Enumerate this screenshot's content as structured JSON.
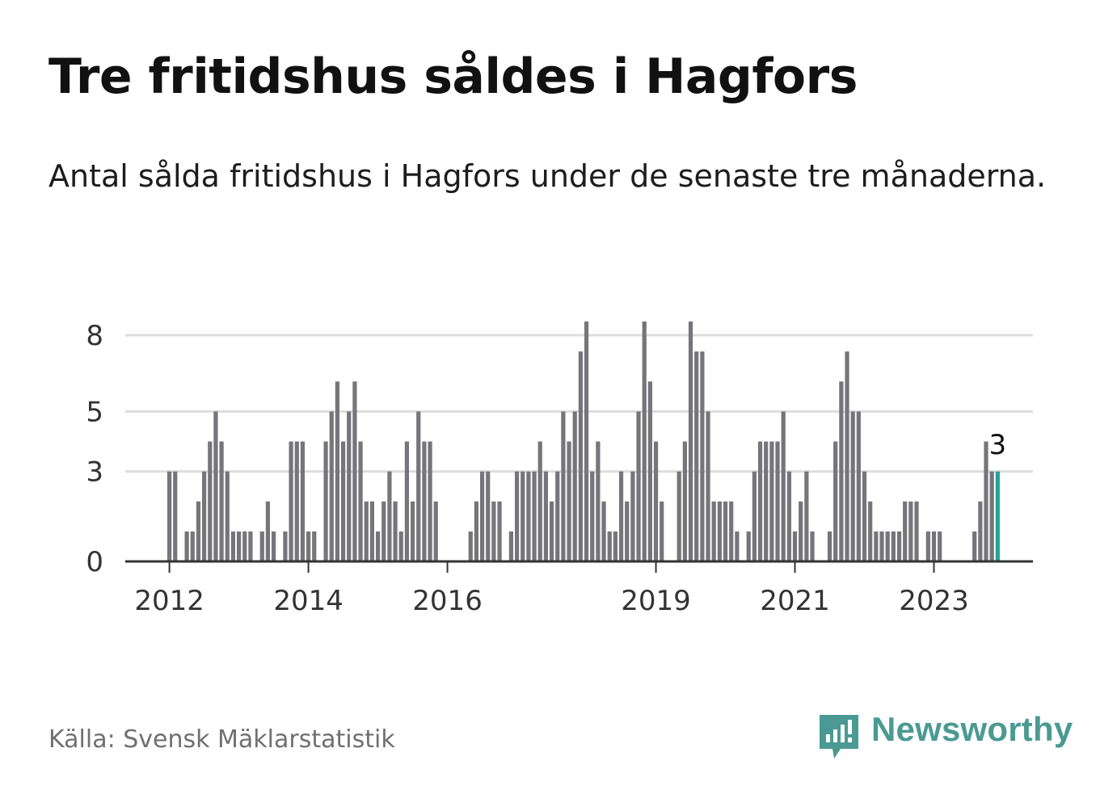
{
  "header": {
    "title": "Tre fritidshus såldes i Hagfors",
    "subtitle": "Antal sålda fritidshus i Hagfors under de senaste tre månaderna."
  },
  "footer": {
    "source": "Källa: Svensk Mäklarstatistik",
    "brand": "Newsworthy"
  },
  "colors": {
    "bar": "#75757a",
    "highlight": "#26a197",
    "grid": "#dddddd",
    "axis": "#333333",
    "brand": "#4a9a93"
  },
  "icons": {
    "brand_logo": "newsworthy-logo-icon"
  },
  "chart_data": {
    "type": "bar",
    "x_unit": "month",
    "x_start": "2012-01",
    "x_tick_labels": [
      "2012",
      "2014",
      "2016",
      "2019",
      "2021",
      "2023"
    ],
    "y_ticks": [
      0,
      3,
      5,
      8
    ],
    "ylim": [
      0,
      8
    ],
    "grid": true,
    "last_value_label": "3",
    "values": [
      3,
      3,
      0,
      1,
      1,
      2,
      3,
      4,
      5,
      4,
      3,
      1,
      1,
      1,
      1,
      0,
      1,
      2,
      1,
      0,
      1,
      4,
      4,
      4,
      1,
      1,
      0,
      4,
      5,
      6,
      4,
      5,
      6,
      4,
      2,
      2,
      1,
      2,
      3,
      2,
      1,
      4,
      2,
      5,
      4,
      4,
      2,
      0,
      0,
      0,
      0,
      0,
      1,
      2,
      3,
      3,
      2,
      2,
      0,
      1,
      3,
      3,
      3,
      3,
      4,
      3,
      2,
      3,
      5,
      4,
      5,
      7,
      8,
      3,
      4,
      2,
      1,
      1,
      3,
      2,
      3,
      5,
      8,
      6,
      4,
      2,
      0,
      0,
      3,
      4,
      8,
      7,
      7,
      5,
      2,
      2,
      2,
      2,
      1,
      0,
      1,
      3,
      4,
      4,
      4,
      4,
      5,
      3,
      1,
      2,
      3,
      1,
      0,
      0,
      1,
      4,
      6,
      7,
      5,
      5,
      3,
      2,
      1,
      1,
      1,
      1,
      1,
      2,
      2,
      2,
      0,
      1,
      1,
      1,
      0,
      0,
      0,
      0,
      0,
      1,
      2,
      4,
      3,
      3
    ]
  }
}
